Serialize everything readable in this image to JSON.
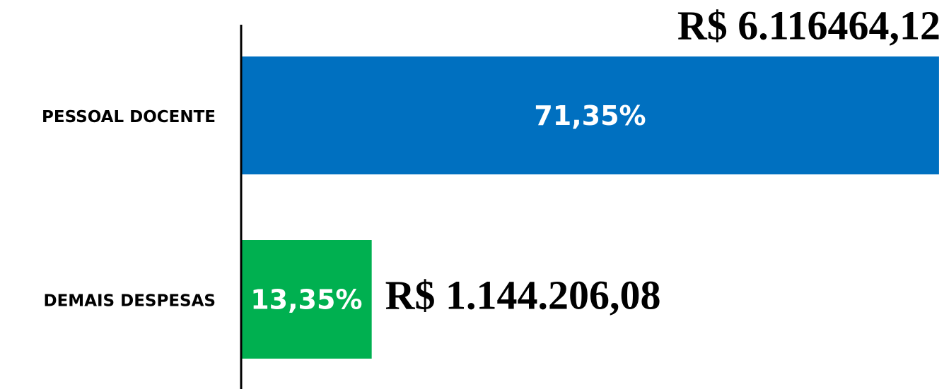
{
  "chart_data": {
    "type": "hbar",
    "categories": [
      "PESSOAL DOCENTE",
      "DEMAIS DESPESAS"
    ],
    "values": [
      71.35,
      13.35
    ],
    "value_labels": [
      "71,35%",
      "13,35%"
    ],
    "amount_labels": [
      "R$ 6.116464,12",
      "R$ 1.144.206,08"
    ],
    "colors": [
      "#0070c0",
      "#00b050"
    ],
    "xlim": [
      0,
      71.5
    ]
  }
}
